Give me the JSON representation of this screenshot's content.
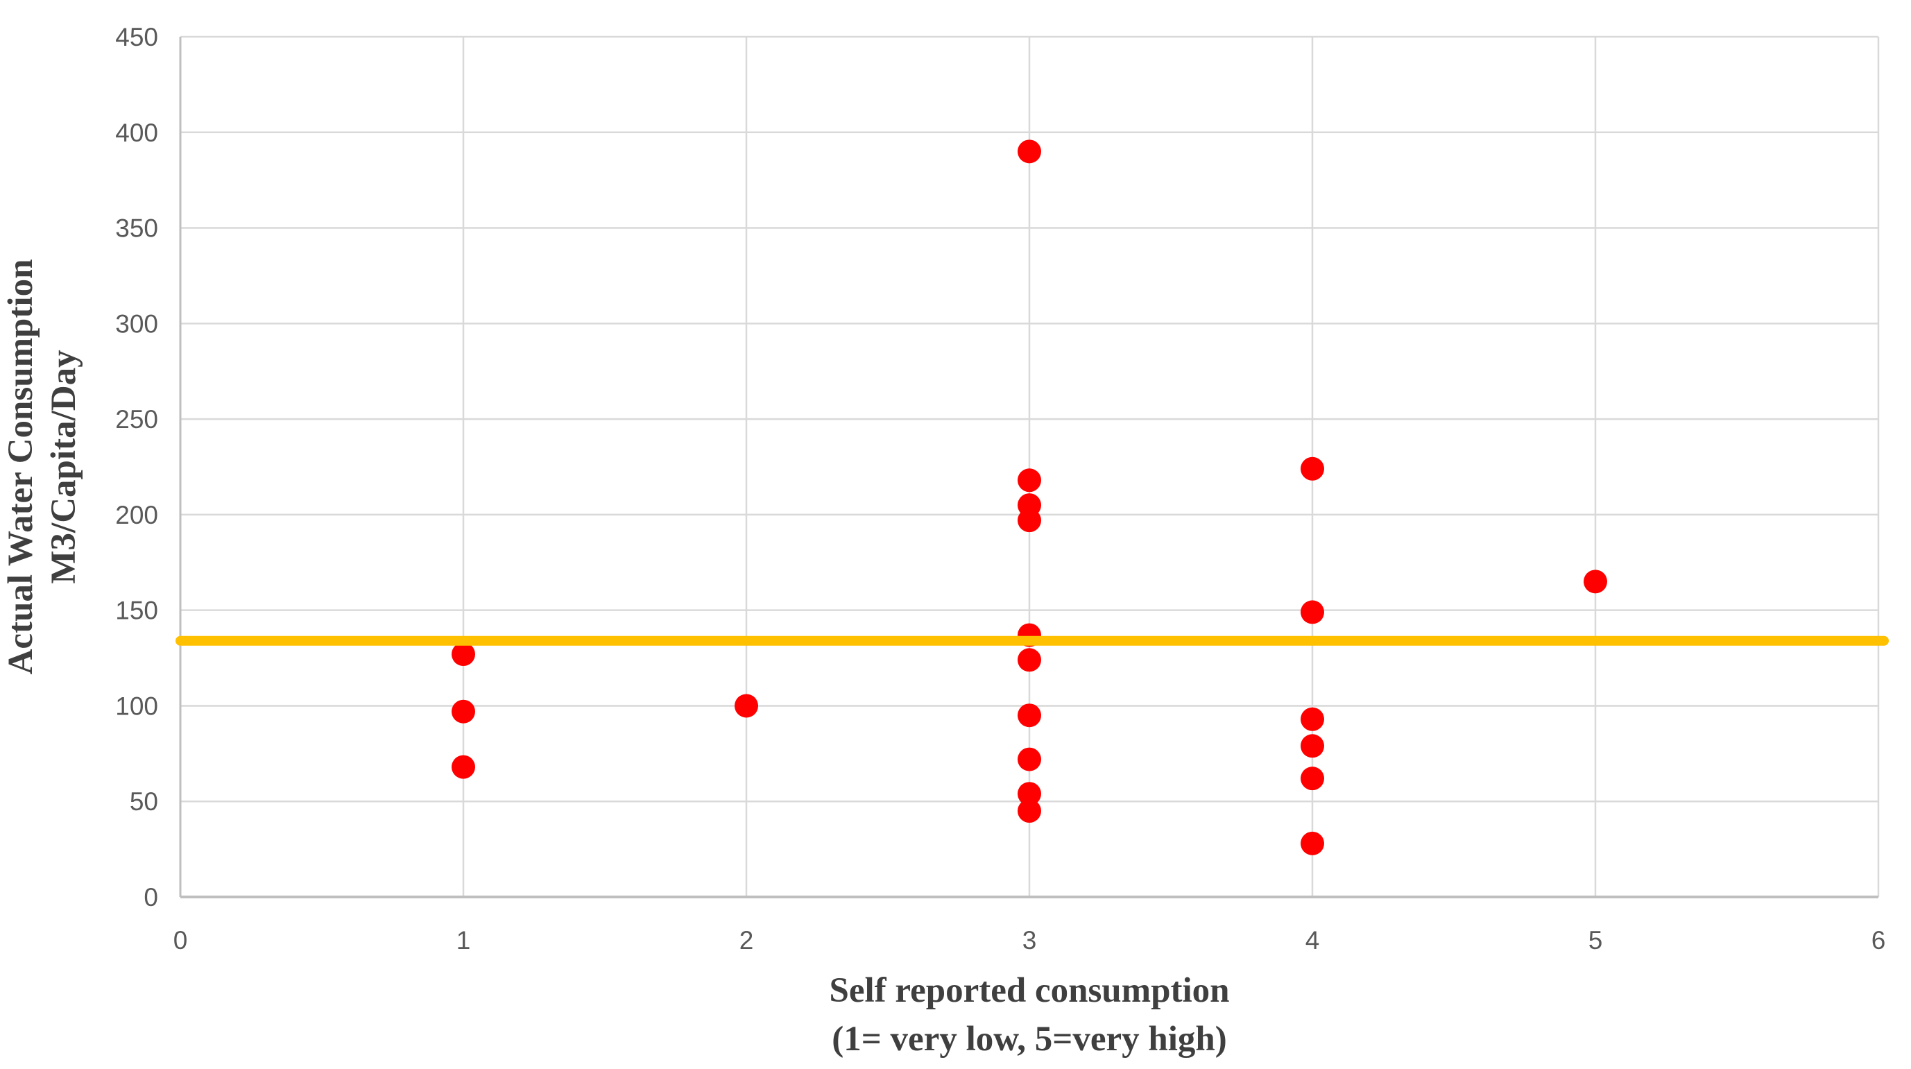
{
  "chart_data": {
    "type": "scatter",
    "title": "",
    "xlabel_lines": [
      "Self reported consumption",
      "(1= very low, 5=very high)"
    ],
    "ylabel_lines": [
      "Actual Water Consumption",
      "M3/Capita/Day"
    ],
    "xlim": [
      0,
      6
    ],
    "ylim": [
      0,
      450
    ],
    "x_ticks": [
      0,
      1,
      2,
      3,
      4,
      5,
      6
    ],
    "y_ticks": [
      0,
      50,
      100,
      150,
      200,
      250,
      300,
      350,
      400,
      450
    ],
    "grid": true,
    "legend": false,
    "series": [
      {
        "name": "actual-water-consumption-points",
        "marker": "circle",
        "color": "#ff0000",
        "marker_radius": 17,
        "points": [
          {
            "x": 1,
            "y": 127
          },
          {
            "x": 1,
            "y": 97
          },
          {
            "x": 1,
            "y": 68
          },
          {
            "x": 2,
            "y": 100
          },
          {
            "x": 3,
            "y": 390
          },
          {
            "x": 3,
            "y": 218
          },
          {
            "x": 3,
            "y": 205
          },
          {
            "x": 3,
            "y": 197
          },
          {
            "x": 3,
            "y": 137
          },
          {
            "x": 3,
            "y": 124
          },
          {
            "x": 3,
            "y": 95
          },
          {
            "x": 3,
            "y": 72
          },
          {
            "x": 3,
            "y": 54
          },
          {
            "x": 3,
            "y": 45
          },
          {
            "x": 4,
            "y": 224
          },
          {
            "x": 4,
            "y": 149
          },
          {
            "x": 4,
            "y": 93
          },
          {
            "x": 4,
            "y": 79
          },
          {
            "x": 4,
            "y": 62
          },
          {
            "x": 4,
            "y": 28
          },
          {
            "x": 5,
            "y": 165
          }
        ]
      }
    ],
    "reference_line": {
      "y": 134,
      "color": "#ffc000",
      "thickness": 14
    }
  },
  "colors": {
    "point": "#ff0000",
    "reference_line": "#ffc000",
    "gridline": "#d9d9d9",
    "axis_line": "#bfbfbf",
    "tick_text": "#595959",
    "title_text": "#3f3f3f",
    "background": "#ffffff"
  }
}
